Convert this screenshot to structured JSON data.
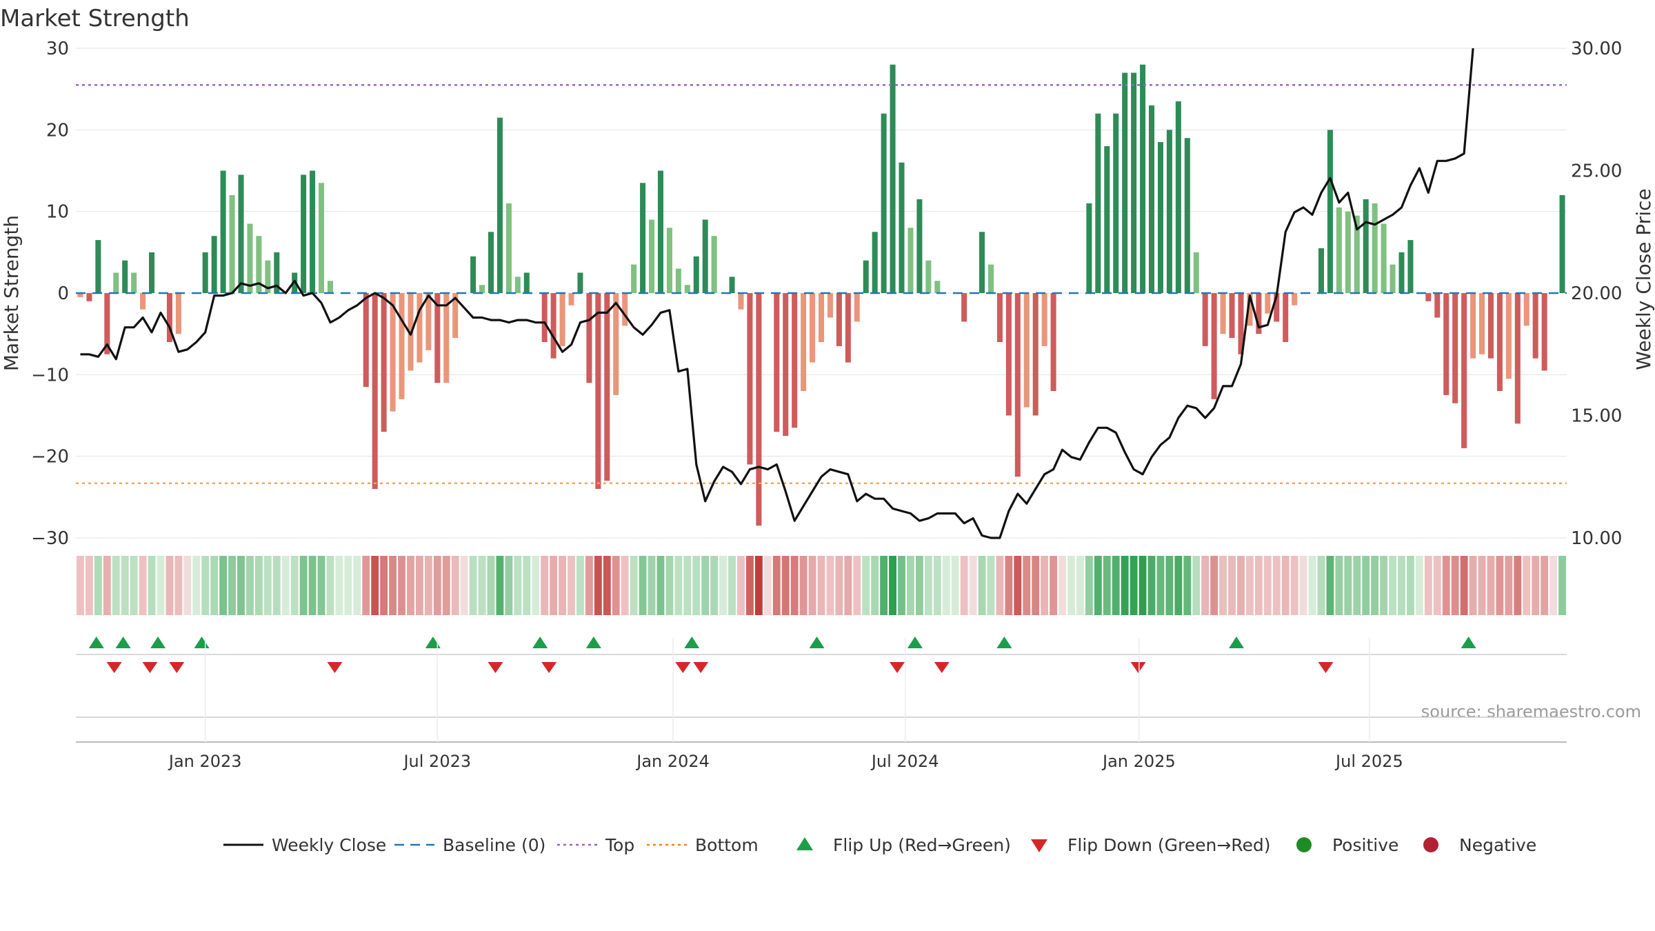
{
  "chart_data": {
    "type": "bar",
    "title": "Market Strength",
    "ylabel_left": "Market Strength",
    "ylabel_right": "Weekly Close Price",
    "source": "source: sharemaestro.com",
    "ylim_left": [
      -30,
      30
    ],
    "ylim_right": [
      10,
      30
    ],
    "yticks_left": [
      "30",
      "20",
      "10",
      "0",
      "−10",
      "−20",
      "−30"
    ],
    "yticks_left_values": [
      30,
      20,
      10,
      0,
      -10,
      -20,
      -30
    ],
    "yticks_right": [
      "30.00",
      "25.00",
      "20.00",
      "15.00",
      "10.00"
    ],
    "yticks_right_values": [
      30,
      25,
      20,
      15,
      10
    ],
    "xticks": [
      "Jan 2023",
      "Jul 2023",
      "Jan 2024",
      "Jul 2024",
      "Jan 2025",
      "Jul 2025"
    ],
    "xtick_weeks": [
      14,
      40,
      66.4,
      92.4,
      118.6,
      144.4
    ],
    "top_level": 25.5,
    "bottom_level": -23.3,
    "strength": [
      -0.5,
      -1,
      6.5,
      -7.5,
      2.5,
      4,
      2.5,
      -2,
      5,
      0,
      -6,
      -5,
      0,
      0,
      5,
      7,
      15,
      12,
      14.5,
      8.5,
      7,
      4,
      5,
      0,
      2.5,
      14.5,
      15,
      13.5,
      1.5,
      0,
      0,
      0,
      -11.5,
      -24,
      -17,
      -14.5,
      -13,
      -9.5,
      -8.5,
      -7,
      -11,
      -11,
      -5.5,
      0,
      4.5,
      1,
      7.5,
      21.5,
      11,
      2,
      2.5,
      0,
      -6,
      -8,
      -6.5,
      -1.5,
      2.5,
      -11,
      -24,
      -23,
      -12.5,
      -4,
      3.5,
      13.5,
      9,
      15,
      8,
      3,
      1,
      4.5,
      9,
      7,
      0,
      2,
      -2,
      -21,
      -28.5,
      0,
      -17,
      -17.5,
      -16.5,
      -12,
      -8.5,
      -6,
      -3,
      -6.5,
      -8.5,
      -3.5,
      4,
      7.5,
      22,
      28,
      16,
      8,
      11.5,
      4,
      1.5,
      0,
      0,
      -3.5,
      0,
      7.5,
      3.5,
      -6,
      -15,
      -22.5,
      -14,
      -15,
      -6.5,
      -12,
      0,
      0,
      0,
      11,
      22,
      18,
      22,
      27,
      27,
      28,
      23,
      18.5,
      20,
      23.5,
      19,
      5,
      -6.5,
      -13,
      -5,
      -5.5,
      -7.5,
      -4,
      -5,
      -2.5,
      -3.5,
      -6,
      -1.5,
      0,
      0,
      5.5,
      20,
      10.5,
      10,
      9.5,
      11.5,
      11,
      8.5,
      3.5,
      5,
      6.5,
      0,
      -1,
      -3,
      -12.5,
      -13.5,
      -19,
      -8,
      -7.5,
      -8,
      -12,
      -10.5,
      -16,
      -4,
      -8,
      -9.5,
      0,
      12
    ],
    "price": [
      17.5,
      17.5,
      17.4,
      17.9,
      17.3,
      18.6,
      18.6,
      19.0,
      18.4,
      19.2,
      18.6,
      17.6,
      17.7,
      18.0,
      18.4,
      19.9,
      19.9,
      20.0,
      20.4,
      20.3,
      20.4,
      20.2,
      20.3,
      20.0,
      20.5,
      19.9,
      20.0,
      19.6,
      18.8,
      19.0,
      19.3,
      19.5,
      19.8,
      20.0,
      19.8,
      19.5,
      18.9,
      18.3,
      19.3,
      19.9,
      19.5,
      19.5,
      19.8,
      19.4,
      19.0,
      19.0,
      18.9,
      18.9,
      18.8,
      18.9,
      18.9,
      18.8,
      18.8,
      18.2,
      17.6,
      17.9,
      18.8,
      18.9,
      19.2,
      19.2,
      19.6,
      19.1,
      18.6,
      18.3,
      18.7,
      19.2,
      19.3,
      16.8,
      16.9,
      13.0,
      11.5,
      12.3,
      12.9,
      12.7,
      12.2,
      12.8,
      12.9,
      12.8,
      13.0,
      11.9,
      10.7,
      11.3,
      11.9,
      12.5,
      12.8,
      12.7,
      12.6,
      11.5,
      11.8,
      11.6,
      11.6,
      11.2,
      11.1,
      11.0,
      10.7,
      10.8,
      11.0,
      11.0,
      11.0,
      10.6,
      10.8,
      10.1,
      10.0,
      10.0,
      11.1,
      11.8,
      11.4,
      12.0,
      12.6,
      12.8,
      13.6,
      13.3,
      13.2,
      13.9,
      14.5,
      14.5,
      14.3,
      13.5,
      12.8,
      12.6,
      13.3,
      13.8,
      14.1,
      14.9,
      15.4,
      15.3,
      14.9,
      15.3,
      16.2,
      16.2,
      17.1,
      19.9,
      18.6,
      18.7,
      19.9,
      22.5,
      23.3,
      23.5,
      23.2,
      24.1,
      24.7,
      23.7,
      24.1,
      22.6,
      22.9,
      22.8,
      23.0,
      23.2,
      23.5,
      24.4,
      25.1,
      24.1,
      25.4,
      25.4,
      25.5,
      25.7,
      30.0
    ],
    "flip_up_weeks": [
      1.8,
      4.8,
      8.7,
      13.6,
      39.5,
      51.5,
      57.5,
      68.5,
      82.5,
      93.5,
      103.5,
      129.5,
      155.5
    ],
    "flip_down_weeks": [
      3.8,
      7.8,
      10.8,
      28.5,
      46.5,
      52.5,
      67.5,
      69.5,
      91.5,
      96.5,
      118.5,
      139.5
    ],
    "legend": [
      {
        "label": "Weekly Close",
        "marker": "solid-line",
        "color": "#111111"
      },
      {
        "label": "Baseline (0)",
        "marker": "dashed-line",
        "color": "#1f77b4"
      },
      {
        "label": "Top",
        "marker": "dotted-line",
        "color": "#9467bd"
      },
      {
        "label": "Bottom",
        "marker": "dotted-line",
        "color": "#ff7f0e"
      },
      {
        "label": "Flip Up (Red→Green)",
        "marker": "triangle-up",
        "color": "#1a9e4a"
      },
      {
        "label": "Flip Down (Green→Red)",
        "marker": "triangle-down",
        "color": "#d62728"
      },
      {
        "label": "Positive",
        "marker": "circle",
        "color": "#1f8b24"
      },
      {
        "label": "Negative",
        "marker": "circle",
        "color": "#b22234"
      }
    ],
    "colors": {
      "bar_pos_strong": "#2e8b57",
      "bar_pos_weak": "#80c080",
      "bar_neg_strong": "#cd5c5c",
      "bar_neg_weak": "#e9967a",
      "price_line": "#111111",
      "baseline": "#1f77b4",
      "top": "#9467bd",
      "bottom": "#f4a460"
    }
  }
}
